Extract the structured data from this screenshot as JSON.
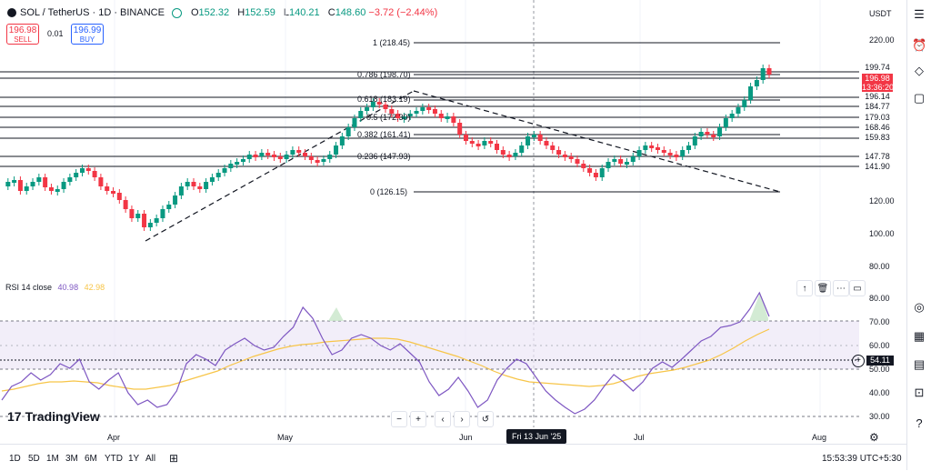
{
  "header": {
    "symbol": "SOL / TetherUS · 1D · BINANCE",
    "open_label": "O",
    "open": "152.32",
    "high_label": "H",
    "high": "152.59",
    "low_label": "L",
    "low": "140.21",
    "close_label": "C",
    "close": "148.60",
    "change": "−3.72 (−2.44%)"
  },
  "trade": {
    "sell_price": "196.98",
    "sell_label": "SELL",
    "spread": "0.01",
    "buy_price": "196.99",
    "buy_label": "BUY"
  },
  "currency": "USDT",
  "fib_labels": [
    "1 (218.45)",
    "0.786 (198.70)",
    "0.618 (183.19)",
    "0.5 (172.30)",
    "0.382 (161.41)",
    "0.236 (147.93)",
    "0 (126.15)"
  ],
  "right_price_labels": [
    "199.74",
    "196.98",
    "13:36:20",
    "196.14",
    "184.77",
    "179.03",
    "168.46",
    "159.83",
    "147.78",
    "141.90"
  ],
  "price_axis": [
    "220.00",
    "200.00",
    "120.00",
    "100.00",
    "80.00"
  ],
  "rsi": {
    "title": "RSI 14 close",
    "value1": "40.98",
    "value2": "42.98",
    "current": "54.11",
    "axis": [
      "80.00",
      "70.00",
      "60.00",
      "50.00",
      "40.00",
      "30.00"
    ]
  },
  "time_axis": {
    "months": [
      "Apr",
      "May",
      "Jun",
      "Jul",
      "Aug"
    ],
    "cursor_date": "Fri 13 Jun '25"
  },
  "logo": "TradingView",
  "timeframes": [
    "1D",
    "5D",
    "1M",
    "3M",
    "6M",
    "YTD",
    "1Y",
    "All"
  ],
  "clock": "15:53:39 UTC+5:30",
  "colors": {
    "up": "#089981",
    "down": "#f23645",
    "rsi_line": "#7e57c2",
    "rsi_ma": "#f7c548",
    "rsi_band": "#ede7f6"
  }
}
